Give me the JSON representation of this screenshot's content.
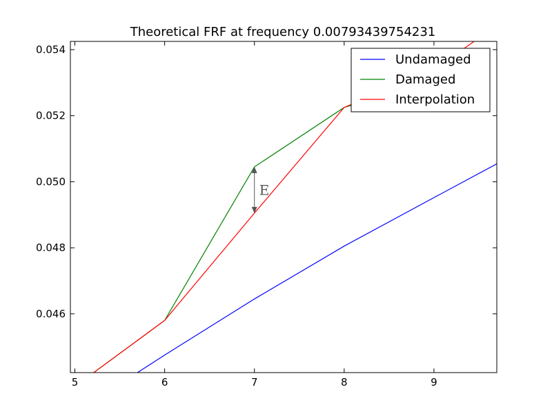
{
  "chart_data": {
    "type": "line",
    "title": "Theoretical FRF at frequency 0.00793439754231",
    "xlabel": "",
    "ylabel": "",
    "xlim": [
      4.95,
      9.7
    ],
    "ylim": [
      0.04422,
      0.05425
    ],
    "xticks": [
      5,
      6,
      7,
      8,
      9
    ],
    "xtick_labels": [
      "5",
      "6",
      "7",
      "8",
      "9"
    ],
    "yticks": [
      0.046,
      0.048,
      0.05,
      0.052,
      0.054
    ],
    "ytick_labels": [
      "0.046",
      "0.048",
      "0.050",
      "0.052",
      "0.054"
    ],
    "grid": false,
    "legend_position": "top-right",
    "series": [
      {
        "name": "Undamaged",
        "color": "#0000ff",
        "x": [
          5,
          6,
          7,
          8,
          9,
          10
        ],
        "y": [
          0.043,
          0.04475,
          0.04645,
          0.04805,
          0.04952,
          0.05098
        ]
      },
      {
        "name": "Damaged",
        "color": "#008000",
        "x": [
          5,
          6,
          7,
          8,
          9
        ],
        "y": [
          0.0438,
          0.0458,
          0.05045,
          0.05225,
          0.05305
        ]
      },
      {
        "name": "Interpolation",
        "color": "#ff0000",
        "x": [
          5,
          6,
          7,
          8,
          9,
          10
        ],
        "y": [
          0.0438,
          0.0458,
          0.04905,
          0.05225,
          0.0534,
          0.0553
        ]
      }
    ],
    "annotations": [
      {
        "text": "E",
        "x": 7,
        "y_top": 0.05045,
        "y_bottom": 0.04905,
        "color": "#555555"
      }
    ]
  }
}
